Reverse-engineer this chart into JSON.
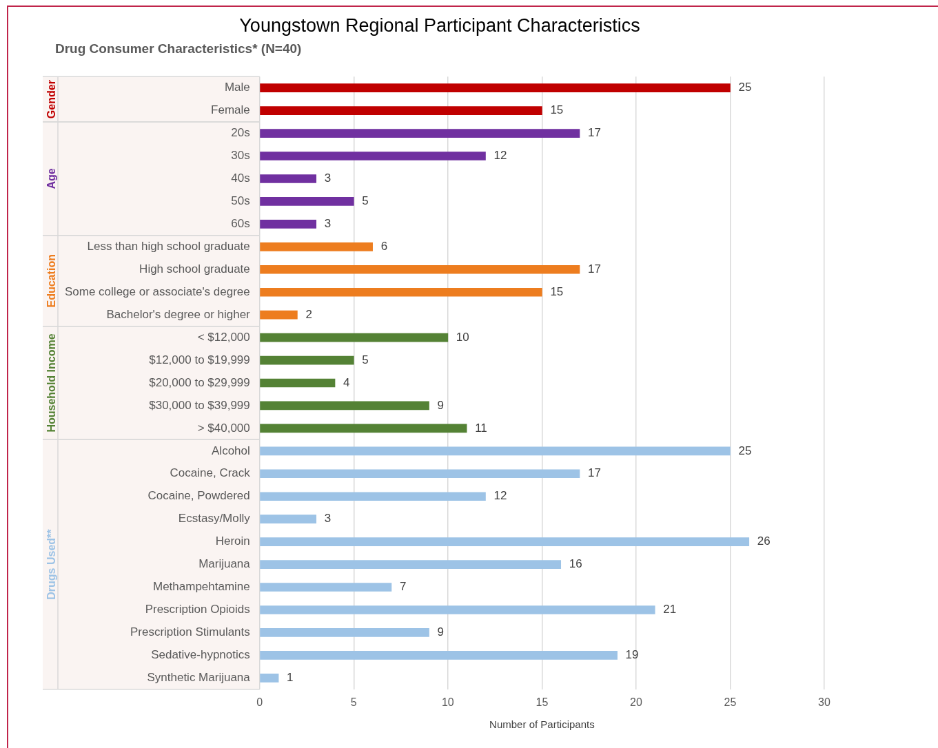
{
  "chart_data": {
    "type": "bar",
    "orientation": "horizontal",
    "title": "Youngstown Regional Participant Characteristics",
    "subtitle": "Drug Consumer Characteristics* (N=40)",
    "xlabel": "Number of Participants",
    "categories": [
      "Male",
      "Female",
      "20s",
      "30s",
      "40s",
      "50s",
      "60s",
      "Less than high school graduate",
      "High school graduate",
      "Some college or associate's degree",
      "Bachelor's degree or higher",
      "< $12,000",
      "$12,000 to $19,999",
      "$20,000 to $29,999",
      "$30,000 to $39,999",
      "> $40,000",
      "Alcohol",
      "Cocaine, Crack",
      "Cocaine, Powdered",
      "Ecstasy/Molly",
      "Heroin",
      "Marijuana",
      "Methampehtamine",
      "Prescription Opioids",
      "Prescription Stimulants",
      "Sedative-hypnotics",
      "Synthetic Marijuana"
    ],
    "series": [
      {
        "name": "Gender",
        "color": "#c00000",
        "values": [
          25,
          15,
          null,
          null,
          null,
          null,
          null,
          null,
          null,
          null,
          null,
          null,
          null,
          null,
          null,
          null,
          null,
          null,
          null,
          null,
          null,
          null,
          null,
          null,
          null,
          null,
          null
        ]
      },
      {
        "name": "Age",
        "color": "#7030a0",
        "values": [
          null,
          null,
          17,
          12,
          3,
          5,
          3,
          null,
          null,
          null,
          null,
          null,
          null,
          null,
          null,
          null,
          null,
          null,
          null,
          null,
          null,
          null,
          null,
          null,
          null,
          null,
          null
        ]
      },
      {
        "name": "Education",
        "color": "#ed7d1f",
        "values": [
          null,
          null,
          null,
          null,
          null,
          null,
          null,
          6,
          17,
          15,
          2,
          null,
          null,
          null,
          null,
          null,
          null,
          null,
          null,
          null,
          null,
          null,
          null,
          null,
          null,
          null,
          null
        ]
      },
      {
        "name": "Household Income",
        "color": "#548235",
        "values": [
          null,
          null,
          null,
          null,
          null,
          null,
          null,
          null,
          null,
          null,
          null,
          10,
          5,
          4,
          9,
          11,
          null,
          null,
          null,
          null,
          null,
          null,
          null,
          null,
          null,
          null,
          null
        ]
      },
      {
        "name": "Drugs Used**",
        "color": "#9dc3e6",
        "values": [
          null,
          null,
          null,
          null,
          null,
          null,
          null,
          null,
          null,
          null,
          null,
          null,
          null,
          null,
          null,
          null,
          25,
          17,
          12,
          3,
          26,
          16,
          7,
          21,
          9,
          19,
          1
        ]
      }
    ],
    "xlim": [
      0,
      30
    ],
    "xticks": [
      0,
      5,
      10,
      15,
      20,
      25,
      30
    ],
    "grid": "x",
    "legend": false,
    "data_labels": true
  }
}
